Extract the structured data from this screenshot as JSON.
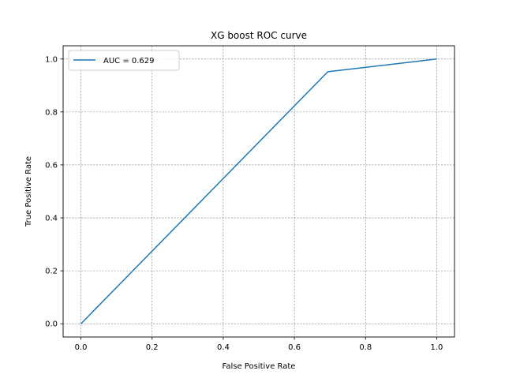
{
  "chart_data": {
    "type": "line",
    "title": "XG boost ROC curve",
    "xlabel": "False Positive Rate",
    "ylabel": "True Positive Rate",
    "xlim": [
      -0.05,
      1.05
    ],
    "ylim": [
      -0.05,
      1.05
    ],
    "xticks": [
      0.0,
      0.2,
      0.4,
      0.6,
      0.8,
      1.0
    ],
    "yticks": [
      0.0,
      0.2,
      0.4,
      0.6,
      0.8,
      1.0
    ],
    "xtick_labels": [
      "0.0",
      "0.2",
      "0.4",
      "0.6",
      "0.8",
      "1.0"
    ],
    "ytick_labels": [
      "0.0",
      "0.2",
      "0.4",
      "0.6",
      "0.8",
      "1.0"
    ],
    "grid": true,
    "grid_style": "dashed",
    "grid_color": "#808080",
    "legend_position": "upper left",
    "series": [
      {
        "name": "AUC = 0.629",
        "color": "#1f77b4",
        "x": [
          0.0,
          0.694,
          1.0
        ],
        "y": [
          0.0,
          0.952,
          1.0
        ]
      }
    ]
  }
}
